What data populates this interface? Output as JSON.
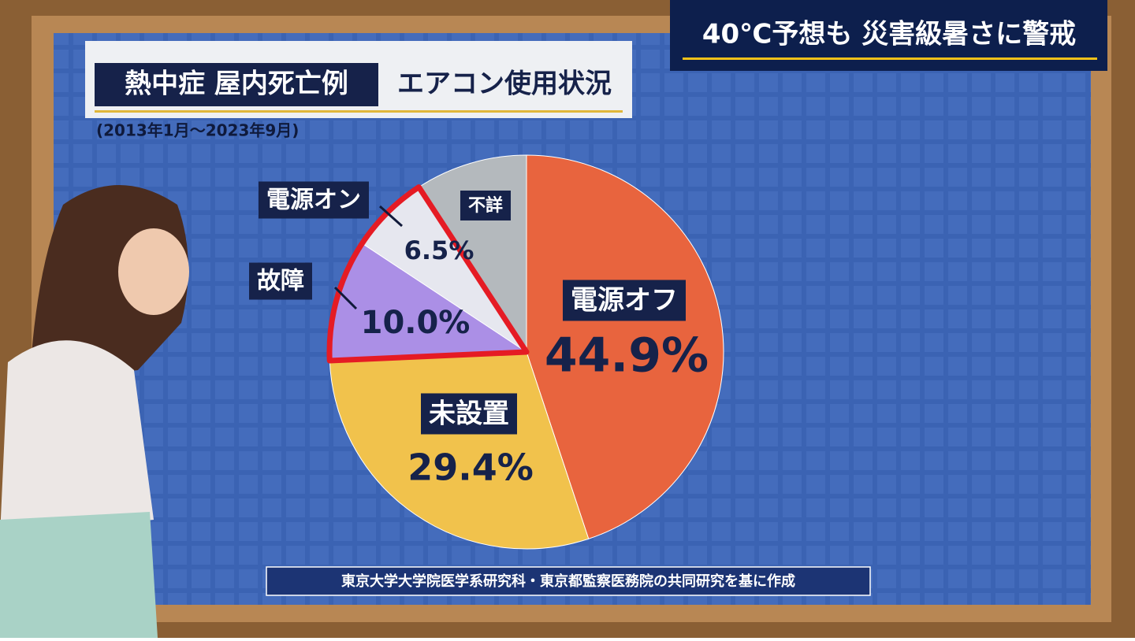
{
  "chart_data": {
    "type": "pie",
    "banner": "40℃予想も 災害級暑さに警戒",
    "title": "熱中症 屋内死亡例",
    "subtitle": "エアコン使用状況",
    "period": "(2013年1月～2023年9月)",
    "source": "東京大学大学院医学系研究科・東京都監察医務院の共同研究を基に作成",
    "categories": [
      "電源オフ",
      "未設置",
      "故障",
      "電源オン",
      "不詳"
    ],
    "values": [
      44.9,
      29.4,
      10.0,
      6.5,
      9.2
    ],
    "value_labels": [
      "44.9%",
      "29.4%",
      "10.0%",
      "6.5%",
      null
    ],
    "colors": [
      "#e8643e",
      "#f1c24c",
      "#ab8fe6",
      "#e6e7ef",
      "#b4b9bd"
    ]
  }
}
